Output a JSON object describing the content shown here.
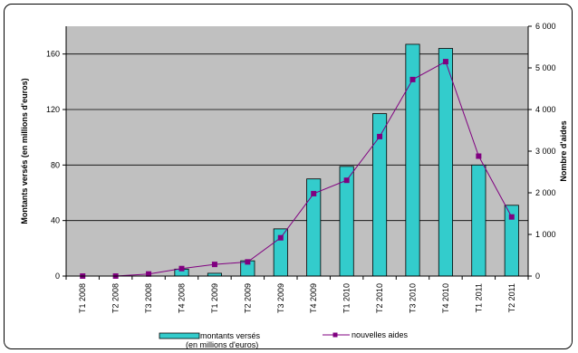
{
  "chart_data": {
    "type": "bar",
    "title": "",
    "categories": [
      "T1 2008",
      "T2 2008",
      "T3 2008",
      "T4 2008",
      "T1 2009",
      "T2 2009",
      "T3 2009",
      "T4 2009",
      "T1 2010",
      "T2 2010",
      "T3 2010",
      "T4 2010",
      "T1 2011",
      "T2 2011"
    ],
    "series": [
      {
        "name": "montants versés (en millions d'euros)",
        "type": "bar",
        "axis": "left",
        "color": "#33cccc",
        "values": [
          0,
          0,
          0,
          5,
          2,
          11,
          34,
          70,
          79,
          117,
          167,
          164,
          80,
          51
        ]
      },
      {
        "name": "nouvelles aides",
        "type": "line",
        "axis": "right",
        "color": "#800080",
        "values": [
          0,
          0,
          50,
          180,
          280,
          340,
          920,
          1980,
          2300,
          3350,
          4720,
          5150,
          2880,
          1420
        ]
      }
    ],
    "ylabel": "Montants versés (en millions d'euros)",
    "ylim": [
      0,
      180
    ],
    "yticks": [
      0,
      40,
      80,
      120,
      160
    ],
    "y2label": "Nombre d'aides",
    "y2lim": [
      0,
      6000
    ],
    "y2ticks": [
      0,
      1000,
      2000,
      3000,
      4000,
      5000,
      6000
    ],
    "y2tick_labels": [
      "0",
      "1 000",
      "2 000",
      "3 000",
      "4 000",
      "5 000",
      "6 000"
    ],
    "plot_background": "#c0c0c0",
    "grid": true,
    "legend": {
      "position": "bottom",
      "bar_label_line1": "montants versés",
      "bar_label_line2": "(en millions d'euros)",
      "line_label": "nouvelles aides"
    }
  }
}
